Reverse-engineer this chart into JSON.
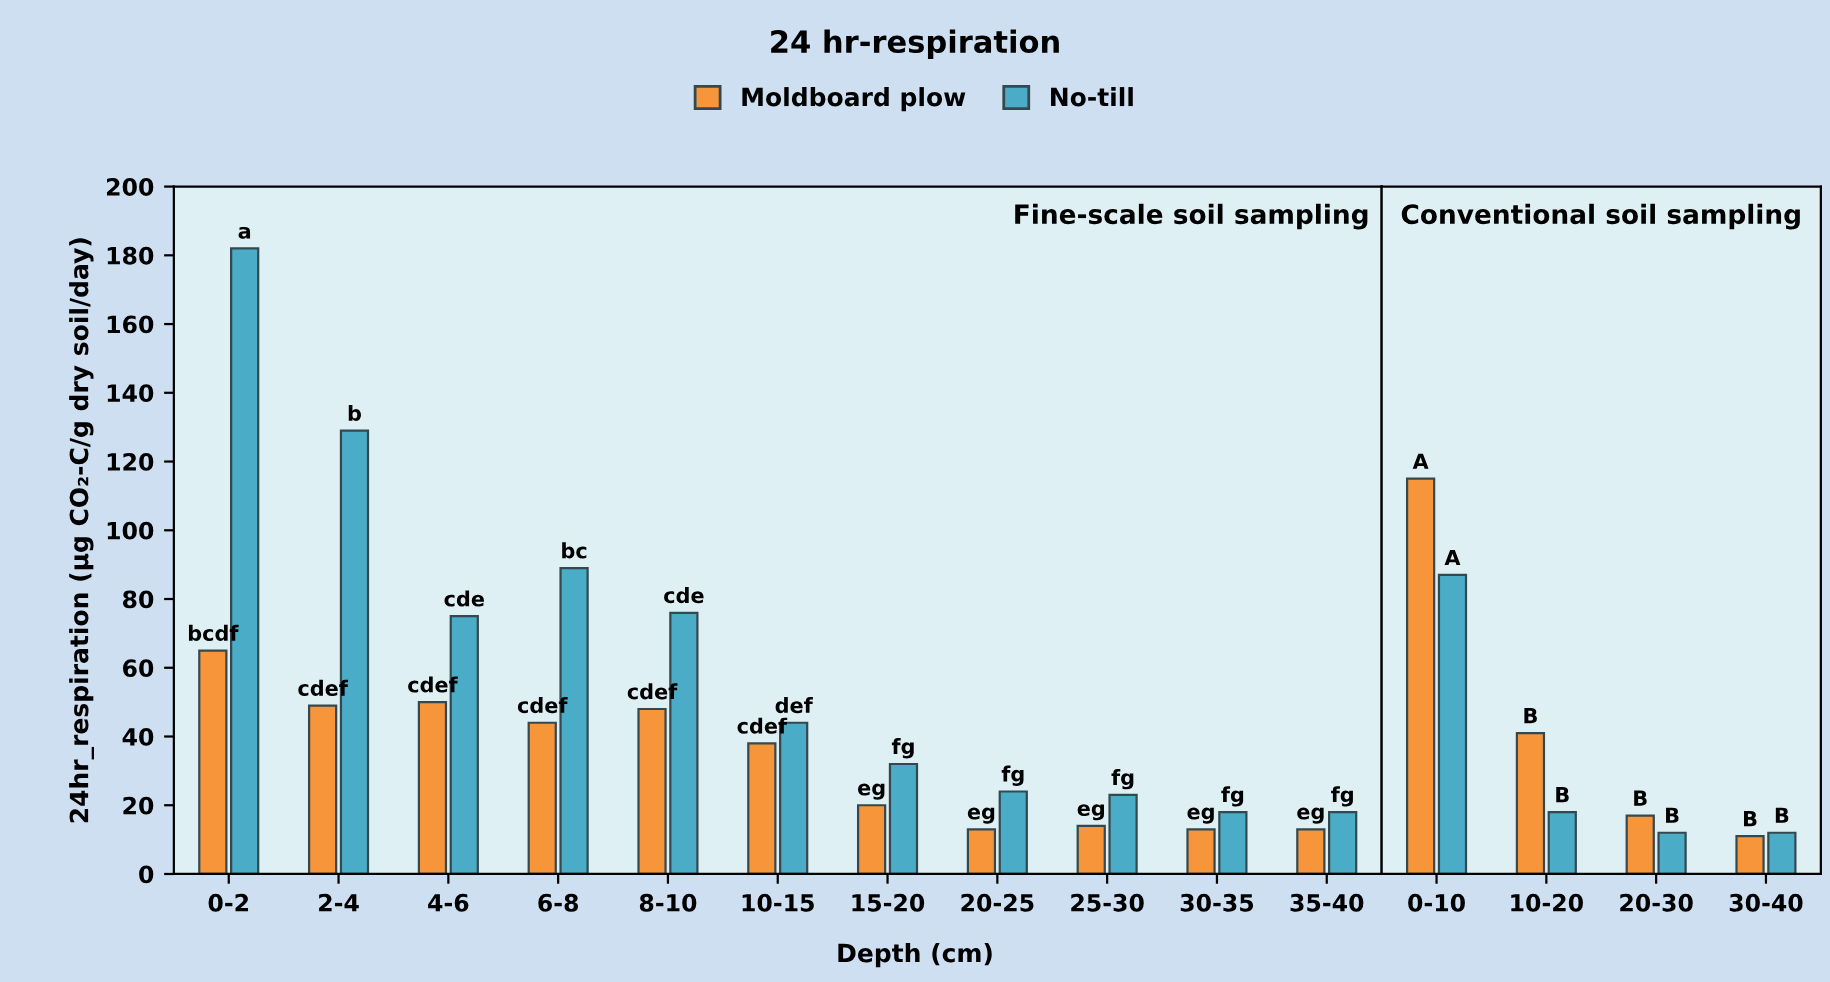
{
  "chart_data": [
    {
      "type": "bar",
      "title": "24 hr-respiration",
      "xlabel": "Depth (cm)",
      "ylabel": "24hr_respiration (μg CO₂-C/g dry soil/day)",
      "categories": [
        "0-2",
        "2-4",
        "4-6",
        "6-8",
        "8-10",
        "10-15",
        "15-20",
        "20-25",
        "25-30",
        "30-35",
        "35-40"
      ],
      "series": [
        {
          "name": "Moldboard plow",
          "color": "#f7953a",
          "values": [
            65,
            49,
            50,
            44,
            48,
            38,
            20,
            13,
            14,
            13,
            13
          ],
          "value_labels": [
            "bcdf",
            "cdef",
            "cdef",
            "cdef",
            "cdef",
            "cdef",
            "eg",
            "eg",
            "eg",
            "eg",
            "eg"
          ]
        },
        {
          "name": "No-till",
          "color": "#4aacc6",
          "values": [
            182,
            129,
            75,
            89,
            76,
            44,
            32,
            24,
            23,
            18,
            18
          ],
          "value_labels": [
            "a",
            "b",
            "cde",
            "bc",
            "cde",
            "def",
            "fg",
            "fg",
            "fg",
            "fg",
            "fg"
          ]
        }
      ],
      "annotations": [
        "Fine-scale soil sampling"
      ],
      "ylim": [
        0,
        200
      ],
      "yticks": [
        0,
        20,
        40,
        60,
        80,
        100,
        120,
        140,
        160,
        180,
        200
      ],
      "legend": "top",
      "grid": false
    },
    {
      "type": "bar",
      "categories": [
        "0-10",
        "10-20",
        "20-30",
        "30-40"
      ],
      "series": [
        {
          "color": "#f7953a",
          "values": [
            115,
            41,
            17,
            11
          ],
          "value_labels": [
            "A",
            "B",
            "B",
            "B"
          ]
        },
        {
          "color": "#4aacc6",
          "values": [
            87,
            18,
            12,
            12
          ],
          "value_labels": [
            "A",
            "B",
            "B",
            "B"
          ]
        }
      ],
      "annotations": [
        "Conventional soil sampling"
      ],
      "ylim": [
        0,
        200
      ],
      "yticks": [
        0,
        20,
        40,
        60,
        80,
        100,
        120,
        140,
        160,
        180,
        200
      ],
      "tick_labels": "x",
      "grid": false
    }
  ]
}
